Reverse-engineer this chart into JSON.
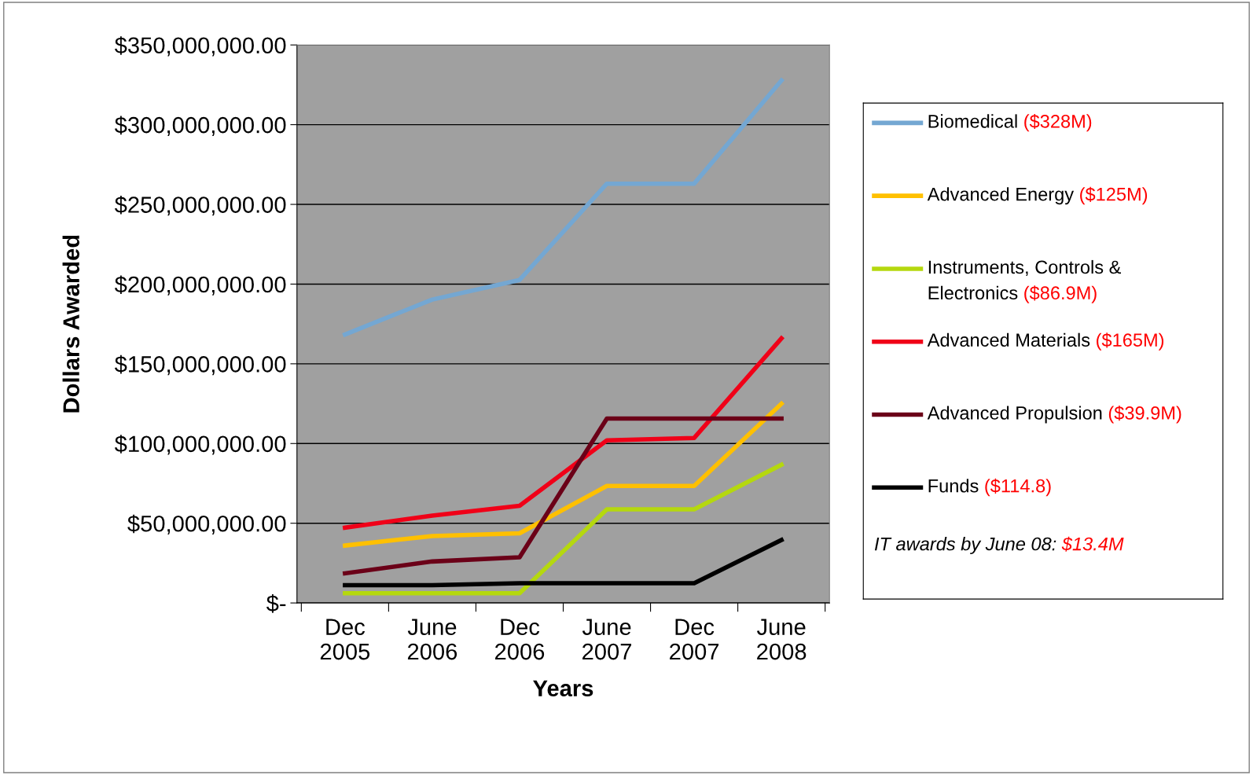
{
  "chart_data": {
    "type": "line",
    "xlabel": "Years",
    "ylabel": "Dollars Awarded",
    "categories": [
      "Dec\n2005",
      "June\n2006",
      "Dec\n2006",
      "June\n2007",
      "Dec\n2007",
      "June\n2008"
    ],
    "series": [
      {
        "name": "Biomedical ($328M)",
        "color": "#74a7d2",
        "values": [
          168400000,
          190300000,
          202600000,
          263000000,
          263000000,
          327700000
        ]
      },
      {
        "name": "Advanced Energy ($125M)",
        "color": "#ffc000",
        "values": [
          36000000,
          42000000,
          43700000,
          73400000,
          73400000,
          125000000
        ]
      },
      {
        "name": "Instruments, Controls &\nElectronics ($86.9M)",
        "color": "#b5d80e",
        "values": [
          6100000,
          6100000,
          6100000,
          58700000,
          58700000,
          86700000
        ]
      },
      {
        "name": "Advanced Materials ($165M)",
        "color": "#f00018",
        "values": [
          47200000,
          54800000,
          60900000,
          102000000,
          103500000,
          166000000
        ]
      },
      {
        "name": "Advanced Propulsion ($39.9M)",
        "color": "#6b0018",
        "values": [
          18600000,
          26000000,
          28600000,
          115700000,
          115700000,
          115700000
        ]
      },
      {
        "name": "Funds ($114.8)",
        "color": "#000000",
        "values": [
          11100000,
          11100000,
          12400000,
          12400000,
          12400000,
          39500000
        ]
      }
    ],
    "ylim": [
      0,
      350000000
    ],
    "yticks": [
      {
        "value": 0,
        "label": "$-"
      },
      {
        "value": 50000000,
        "label": "$50,000,000.00"
      },
      {
        "value": 100000000,
        "label": "$100,000,000.00"
      },
      {
        "value": 150000000,
        "label": "$150,000,000.00"
      },
      {
        "value": 200000000,
        "label": "$200,000,000.00"
      },
      {
        "value": 250000000,
        "label": "$250,000,000.00"
      },
      {
        "value": 300000000,
        "label": "$300,000,000.00"
      },
      {
        "value": 350000000,
        "label": "$350,000,000.00"
      }
    ],
    "grid": "y",
    "legend": "right",
    "marker": "none",
    "line_style": "solid",
    "annotations": [
      "IT awards by June 08: $13.4M"
    ]
  }
}
